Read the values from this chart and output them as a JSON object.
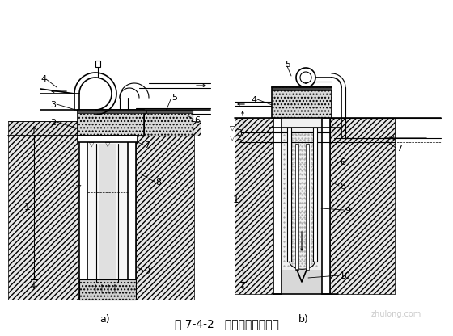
{
  "title": "图 7-4-2   吸泥机清孔示意图",
  "label_a": "a)",
  "label_b": "b)",
  "bg_color": "#ffffff",
  "watermark": "zhulong.com"
}
